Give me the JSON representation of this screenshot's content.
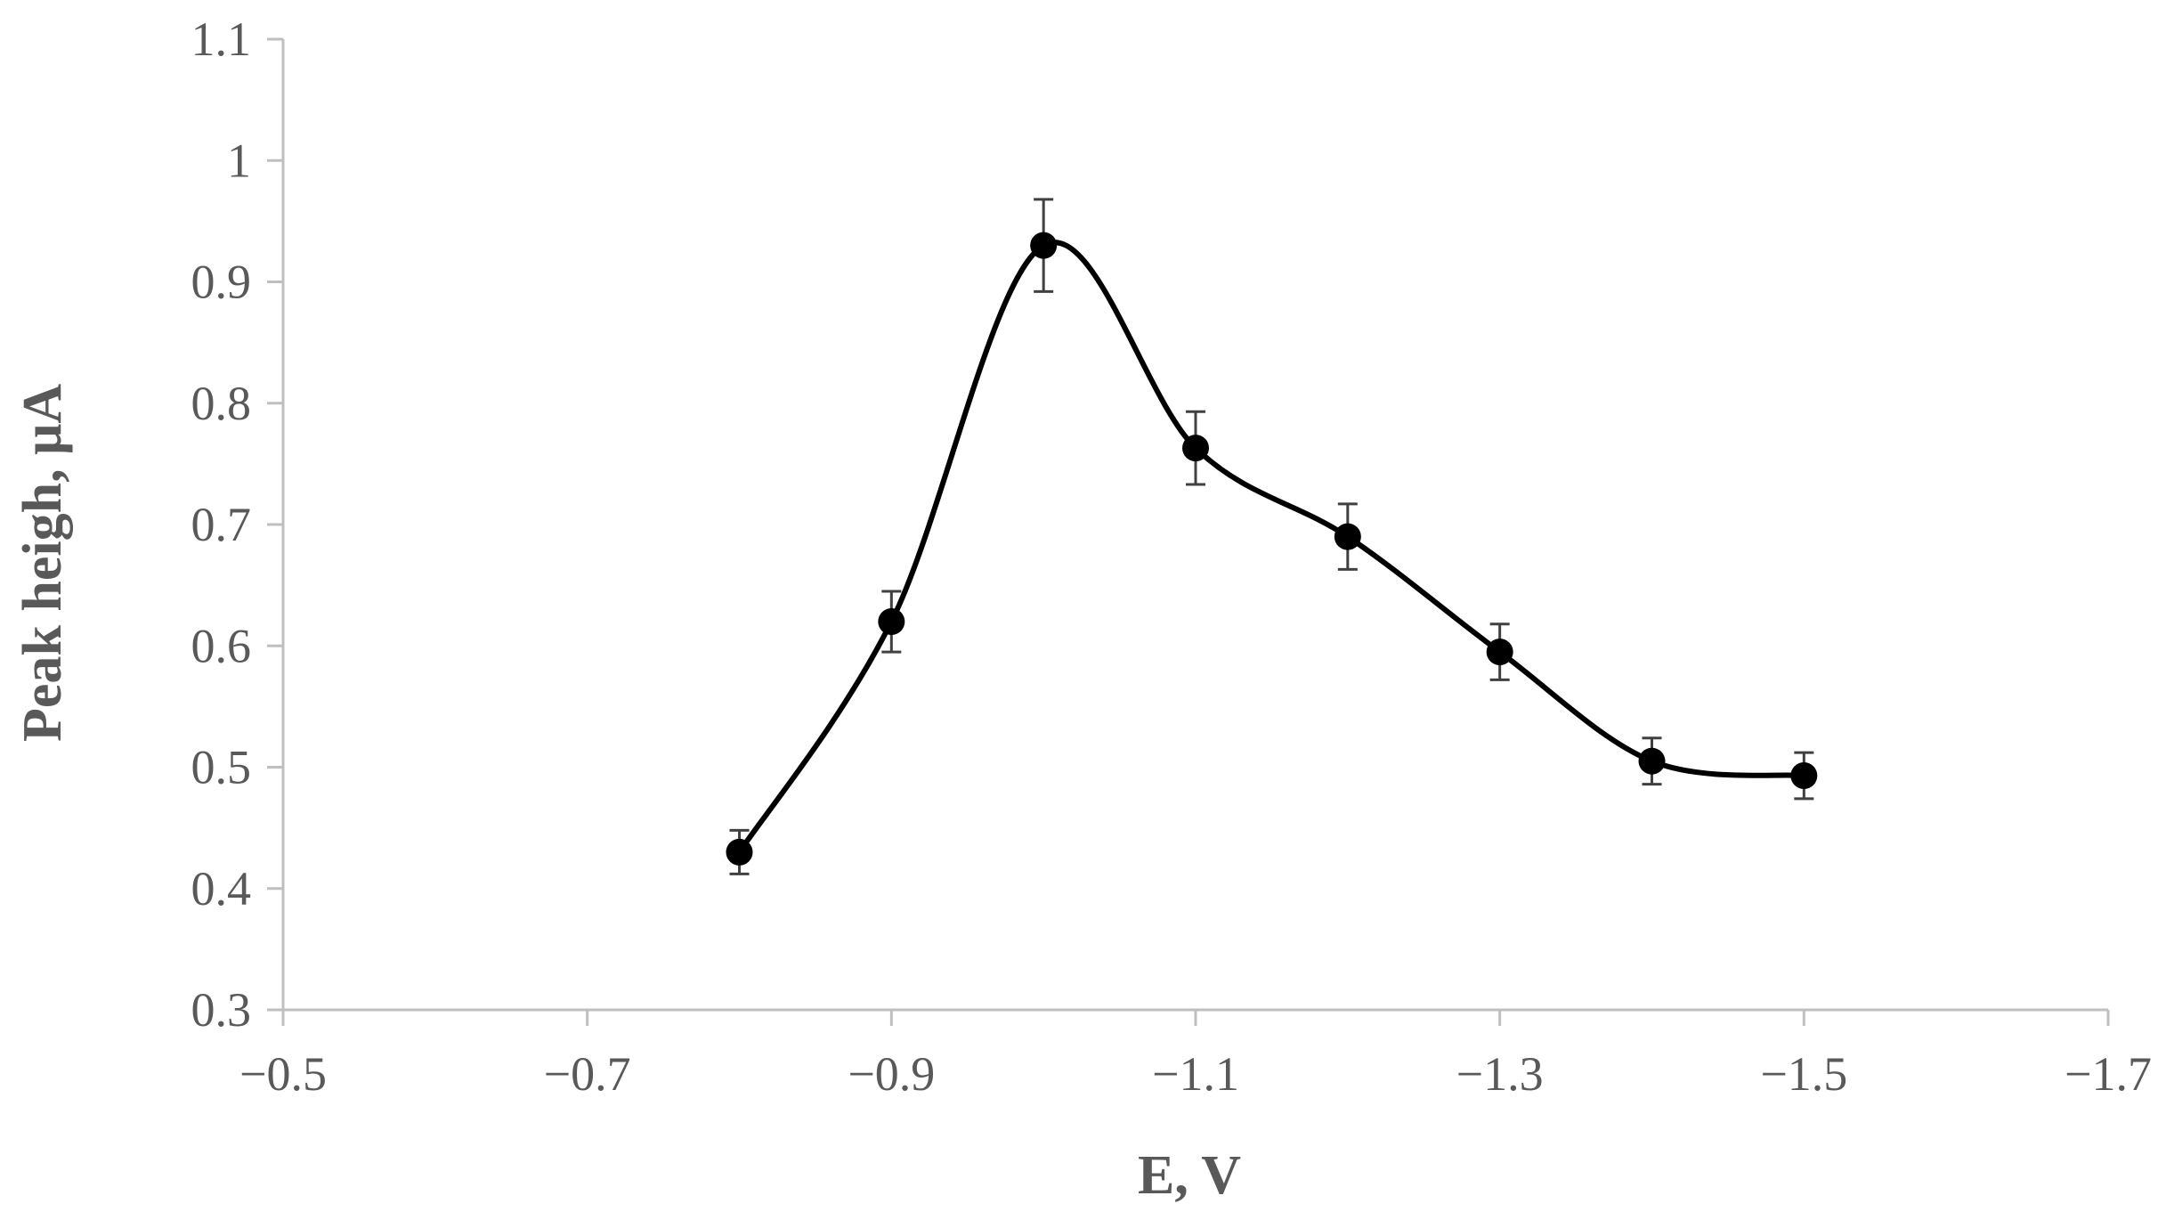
{
  "chart_data": {
    "type": "line",
    "title": "",
    "xlabel": "E, V",
    "ylabel": "Peak heigh, μA",
    "x_axis_reversed": true,
    "xlim": [
      -0.5,
      -1.7
    ],
    "ylim": [
      0.3,
      1.1
    ],
    "x_ticks": [
      -0.5,
      -0.7,
      -0.9,
      -1.1,
      -1.3,
      -1.5,
      -1.7
    ],
    "x_tick_labels": [
      "−0.5",
      "−0.7",
      "−0.9",
      "−1.1",
      "−1.3",
      "−1.5",
      "−1.7"
    ],
    "y_ticks": [
      0.3,
      0.4,
      0.5,
      0.6,
      0.7,
      0.8,
      0.9,
      1.0,
      1.1
    ],
    "y_tick_labels": [
      "0.3",
      "0.4",
      "0.5",
      "0.6",
      "0.7",
      "0.8",
      "0.9",
      "1",
      "1.1"
    ],
    "grid": false,
    "smooth_line": true,
    "series": [
      {
        "x": [
          -0.8,
          -0.9,
          -1.0,
          -1.1,
          -1.2,
          -1.3,
          -1.4,
          -1.5
        ],
        "y": [
          0.43,
          0.62,
          0.93,
          0.763,
          0.69,
          0.595,
          0.505,
          0.493
        ],
        "error": [
          0.018,
          0.025,
          0.038,
          0.03,
          0.027,
          0.023,
          0.019,
          0.019
        ],
        "color": "#000000",
        "marker": "circle"
      }
    ],
    "colors": {
      "axis": "#bfbfbf",
      "text": "#595959",
      "line": "#000000",
      "error_bar": "#404040"
    }
  }
}
